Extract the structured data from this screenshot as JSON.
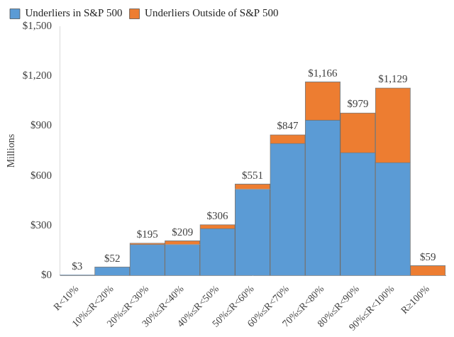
{
  "chart_data": {
    "type": "bar",
    "stacked": true,
    "y_label": "Millions",
    "categories": [
      "R<10%",
      "10%≤R<20%",
      "20%≤R<30%",
      "30%≤R<40%",
      "40%≤R<50%",
      "50%≤R<60%",
      "60%≤R<70%",
      "70%≤R<80%",
      "80%≤R<90%",
      "90%≤R<100%",
      "R≥100%"
    ],
    "series": [
      {
        "name": "Underliers in S&P 500",
        "color": "#5b9bd5",
        "values": [
          3,
          52,
          187,
          187,
          283,
          520,
          795,
          935,
          740,
          680,
          0
        ]
      },
      {
        "name": "Underliers Outside of S&P 500",
        "color": "#ed7d31",
        "values": [
          0,
          0,
          8,
          22,
          23,
          31,
          52,
          231,
          239,
          449,
          59
        ]
      }
    ],
    "totals": [
      3,
      52,
      195,
      209,
      306,
      551,
      847,
      1166,
      979,
      1129,
      59
    ],
    "total_labels": [
      "$3",
      "$52",
      "$195",
      "$209",
      "$306",
      "$551",
      "$847",
      "$1,166",
      "$979",
      "$1,129",
      "$59"
    ],
    "ylim": [
      0,
      1500
    ],
    "yticks": [
      {
        "value": 0,
        "label": "$0"
      },
      {
        "value": 300,
        "label": "$300"
      },
      {
        "value": 600,
        "label": "$600"
      },
      {
        "value": 900,
        "label": "$900"
      },
      {
        "value": 1200,
        "label": "$1,200"
      },
      {
        "value": 1500,
        "label": "$1,500"
      }
    ],
    "grid": false,
    "legend": "top"
  }
}
